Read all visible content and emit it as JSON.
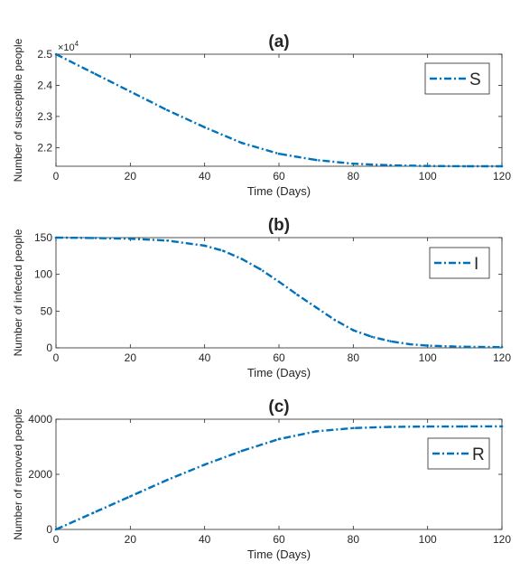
{
  "chart_data": [
    {
      "type": "line",
      "title": "(a)",
      "xlabel": "Time (Days)",
      "ylabel": "Number of susceptible people",
      "exponent_label": "×10",
      "exponent_power": "4",
      "xlim": [
        0,
        120
      ],
      "ylim": [
        2.14,
        2.5
      ],
      "xticks": [
        0,
        20,
        40,
        60,
        80,
        100,
        120
      ],
      "yticks": [
        2.2,
        2.3,
        2.4,
        2.5
      ],
      "ytick_labels": [
        "2.2",
        "2.3",
        "2.4",
        "2.5"
      ],
      "grid": false,
      "legend_position": "top-right",
      "line_color": "#0072BD",
      "series": [
        {
          "name": "S",
          "x": [
            0,
            10,
            20,
            30,
            40,
            50,
            60,
            70,
            80,
            90,
            100,
            110,
            120
          ],
          "y": [
            2.5,
            2.44,
            2.38,
            2.32,
            2.265,
            2.215,
            2.18,
            2.16,
            2.148,
            2.143,
            2.141,
            2.14,
            2.14
          ]
        }
      ]
    },
    {
      "type": "line",
      "title": "(b)",
      "xlabel": "Time (Days)",
      "ylabel": "Number of infected people",
      "xlim": [
        0,
        120
      ],
      "ylim": [
        0,
        150
      ],
      "xticks": [
        0,
        20,
        40,
        60,
        80,
        100,
        120
      ],
      "yticks": [
        0,
        50,
        100,
        150
      ],
      "ytick_labels": [
        "0",
        "50",
        "100",
        "150"
      ],
      "grid": false,
      "legend_position": "top-right",
      "line_color": "#0072BD",
      "series": [
        {
          "name": "I",
          "x": [
            0,
            10,
            20,
            30,
            40,
            45,
            50,
            55,
            60,
            65,
            70,
            75,
            80,
            85,
            90,
            95,
            100,
            110,
            120
          ],
          "y": [
            150,
            149.5,
            148.5,
            146,
            139,
            132,
            121,
            107,
            90,
            72,
            55,
            38,
            24,
            15,
            9,
            5,
            3,
            1.5,
            1
          ]
        }
      ]
    },
    {
      "type": "line",
      "title": "(c)",
      "xlabel": "Time (Days)",
      "ylabel": "Number of removed people",
      "xlim": [
        0,
        120
      ],
      "ylim": [
        0,
        4000
      ],
      "xticks": [
        0,
        20,
        40,
        60,
        80,
        100,
        120
      ],
      "yticks": [
        0,
        2000,
        4000
      ],
      "ytick_labels": [
        "0",
        "2000",
        "4000"
      ],
      "grid": false,
      "legend_position": "right",
      "line_color": "#0072BD",
      "series": [
        {
          "name": "R",
          "x": [
            0,
            10,
            20,
            30,
            40,
            50,
            60,
            70,
            80,
            90,
            100,
            110,
            120
          ],
          "y": [
            0,
            600,
            1200,
            1800,
            2350,
            2850,
            3280,
            3560,
            3680,
            3720,
            3735,
            3738,
            3740
          ]
        }
      ]
    }
  ]
}
